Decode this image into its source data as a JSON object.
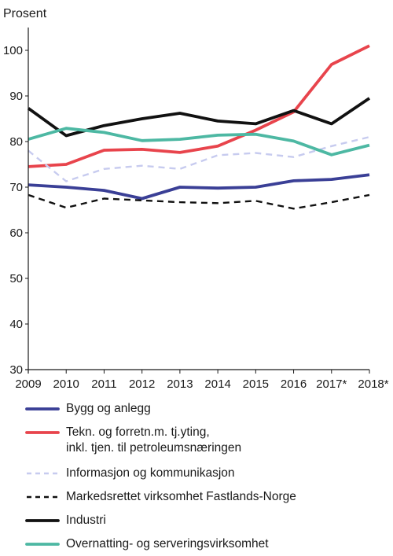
{
  "chart_data": {
    "type": "line",
    "ylabel": "Prosent",
    "categories": [
      "2009",
      "2010",
      "2011",
      "2012",
      "2013",
      "2014",
      "2015",
      "2016",
      "2017*",
      "2018*"
    ],
    "ylim": [
      30,
      105
    ],
    "yticks": [
      30,
      40,
      50,
      60,
      70,
      80,
      90,
      100
    ],
    "grid": false,
    "legend_position": "bottom",
    "series": [
      {
        "name": "Bygg og anlegg",
        "color": "#3a3f96",
        "style": "solid",
        "values": [
          70.5,
          70.0,
          69.3,
          67.5,
          70.0,
          69.8,
          70.0,
          71.4,
          71.7,
          72.7
        ]
      },
      {
        "name": "Tekn. og forretn.m. tj.yting,\ninkl. tjen. til petroleumsnæringen",
        "color": "#e8444c",
        "style": "solid",
        "values": [
          74.5,
          75.0,
          78.1,
          78.3,
          77.6,
          79.0,
          82.5,
          86.5,
          96.9,
          101.0
        ]
      },
      {
        "name": "Informasjon og kommunikasjon",
        "color": "#c7cbef",
        "style": "dashed",
        "values": [
          78.0,
          71.3,
          74.0,
          74.7,
          74.0,
          77.0,
          77.5,
          76.6,
          79.0,
          81.0
        ]
      },
      {
        "name": "Markedsrettet virksomhet Fastlands-Norge",
        "color": "#111111",
        "style": "dashed",
        "values": [
          68.3,
          65.5,
          67.5,
          67.1,
          66.7,
          66.5,
          67.0,
          65.3,
          66.7,
          68.3
        ]
      },
      {
        "name": "Industri",
        "color": "#111111",
        "style": "solid",
        "values": [
          87.3,
          81.3,
          83.5,
          85.0,
          86.2,
          84.5,
          83.9,
          86.8,
          83.9,
          89.5
        ]
      },
      {
        "name": "Overnatting- og serveringsvirksomhet",
        "color": "#4db8a3",
        "style": "solid",
        "values": [
          80.5,
          82.9,
          82.0,
          80.2,
          80.5,
          81.4,
          81.6,
          80.1,
          77.1,
          79.2
        ]
      }
    ]
  }
}
